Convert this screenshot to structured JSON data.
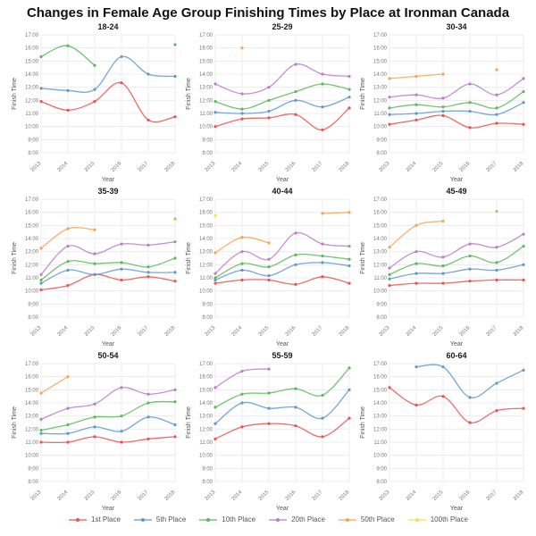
{
  "title": "Changes in Female Age Group Finishing Times by Place at Ironman Canada",
  "legend": {
    "entries": [
      {
        "label": "1st Place",
        "color": "#e8534f"
      },
      {
        "label": "5th Place",
        "color": "#5f99cc"
      },
      {
        "label": "10th Place",
        "color": "#5cb85c"
      },
      {
        "label": "20th Place",
        "color": "#b97dc7"
      },
      {
        "label": "50th Place",
        "color": "#f6a353"
      },
      {
        "label": "100th Place",
        "color": "#f0e05a"
      }
    ]
  },
  "axes": {
    "xlabel": "Year",
    "ylabel": "Finish Time",
    "xticks": [
      "2013",
      "2014",
      "2015",
      "2016",
      "2017",
      "2018"
    ],
    "yticks": [
      "17:00",
      "16:00",
      "15:00",
      "14:00",
      "13:00",
      "12:00",
      "11:00",
      "10:00",
      "9:00",
      "8:00"
    ],
    "ymin_hours": 8,
    "ymax_hours": 17,
    "grid": true
  },
  "chart_data": [
    {
      "type": "line",
      "title": "18-24",
      "x": [
        "2013",
        "2014",
        "2015",
        "2016",
        "2017",
        "2018"
      ],
      "series": [
        {
          "name": "1st Place",
          "values": [
            "11:55",
            "11:15",
            "11:55",
            "13:20",
            "10:30",
            "10:45"
          ]
        },
        {
          "name": "5th Place",
          "values": [
            "12:55",
            "12:45",
            "12:50",
            "15:20",
            "14:00",
            "13:50"
          ]
        },
        {
          "name": "10th Place",
          "values": [
            "15:20",
            "16:10",
            "14:40",
            null,
            null,
            "16:15"
          ]
        }
      ]
    },
    {
      "type": "line",
      "title": "25-29",
      "x": [
        "2013",
        "2014",
        "2015",
        "2016",
        "2017",
        "2018"
      ],
      "series": [
        {
          "name": "1st Place",
          "values": [
            "10:00",
            "10:35",
            "10:40",
            "10:55",
            "9:45",
            "11:25"
          ]
        },
        {
          "name": "5th Place",
          "values": [
            "11:05",
            "11:00",
            "11:10",
            "12:00",
            "11:30",
            "12:15"
          ]
        },
        {
          "name": "10th Place",
          "values": [
            "11:55",
            "11:20",
            "12:00",
            "12:40",
            "13:15",
            "12:50"
          ]
        },
        {
          "name": "20th Place",
          "values": [
            "13:15",
            "12:30",
            "13:00",
            "14:45",
            "14:00",
            "13:50"
          ]
        },
        {
          "name": "50th Place",
          "values": [
            null,
            "16:00",
            null,
            null,
            null,
            null
          ]
        }
      ]
    },
    {
      "type": "line",
      "title": "30-34",
      "x": [
        "2013",
        "2014",
        "2015",
        "2016",
        "2017",
        "2018"
      ],
      "series": [
        {
          "name": "1st Place",
          "values": [
            "10:10",
            "10:30",
            "10:50",
            "9:55",
            "10:15",
            "10:10"
          ]
        },
        {
          "name": "5th Place",
          "values": [
            "10:55",
            "11:00",
            "11:10",
            "11:10",
            "10:55",
            "11:50"
          ]
        },
        {
          "name": "10th Place",
          "values": [
            "11:25",
            "11:40",
            "11:30",
            "11:50",
            "11:25",
            "12:40"
          ]
        },
        {
          "name": "20th Place",
          "values": [
            "12:15",
            "12:25",
            "12:10",
            "13:15",
            "12:25",
            "13:40"
          ]
        },
        {
          "name": "50th Place",
          "values": [
            "13:40",
            "13:50",
            "14:00",
            null,
            "14:20",
            null
          ]
        }
      ]
    },
    {
      "type": "line",
      "title": "35-39",
      "x": [
        "2013",
        "2014",
        "2015",
        "2016",
        "2017",
        "2018"
      ],
      "series": [
        {
          "name": "1st Place",
          "values": [
            "10:05",
            "10:25",
            "11:15",
            "10:50",
            "11:05",
            "10:45"
          ]
        },
        {
          "name": "5th Place",
          "values": [
            "10:35",
            "11:35",
            "11:15",
            "11:40",
            "11:25",
            "11:25"
          ]
        },
        {
          "name": "10th Place",
          "values": [
            "10:50",
            "12:15",
            "12:05",
            "12:10",
            "11:50",
            "12:30"
          ]
        },
        {
          "name": "20th Place",
          "values": [
            "11:15",
            "13:25",
            "12:50",
            "13:35",
            "13:30",
            "13:45"
          ]
        },
        {
          "name": "50th Place",
          "values": [
            "13:15",
            "14:45",
            "14:40",
            null,
            null,
            "15:30"
          ]
        }
      ]
    },
    {
      "type": "line",
      "title": "40-44",
      "x": [
        "2013",
        "2014",
        "2015",
        "2016",
        "2017",
        "2018"
      ],
      "series": [
        {
          "name": "1st Place",
          "values": [
            "10:35",
            "10:50",
            "10:50",
            "10:30",
            "11:05",
            "10:35"
          ]
        },
        {
          "name": "5th Place",
          "values": [
            "10:50",
            "11:35",
            "11:10",
            "12:00",
            "12:10",
            "11:55"
          ]
        },
        {
          "name": "10th Place",
          "values": [
            "11:00",
            "12:05",
            "11:50",
            "12:45",
            "12:40",
            "12:25"
          ]
        },
        {
          "name": "20th Place",
          "values": [
            "11:20",
            "13:00",
            "12:25",
            "14:25",
            "13:35",
            "13:25"
          ]
        },
        {
          "name": "50th Place",
          "values": [
            "12:55",
            "14:05",
            "13:40",
            null,
            "15:55",
            "16:00"
          ]
        },
        {
          "name": "100th Place",
          "values": [
            "15:45",
            null,
            null,
            null,
            null,
            null
          ]
        }
      ]
    },
    {
      "type": "line",
      "title": "45-49",
      "x": [
        "2013",
        "2014",
        "2015",
        "2016",
        "2017",
        "2018"
      ],
      "series": [
        {
          "name": "1st Place",
          "values": [
            "10:25",
            "10:35",
            "10:35",
            "10:45",
            "10:50",
            "10:50"
          ]
        },
        {
          "name": "5th Place",
          "values": [
            "10:55",
            "11:20",
            "11:20",
            "11:40",
            "11:35",
            "12:00"
          ]
        },
        {
          "name": "10th Place",
          "values": [
            "11:15",
            "12:05",
            "11:55",
            "12:40",
            "12:10",
            "13:25"
          ]
        },
        {
          "name": "20th Place",
          "values": [
            "11:45",
            "13:00",
            "12:35",
            "13:35",
            "13:20",
            "14:20"
          ]
        },
        {
          "name": "50th Place",
          "values": [
            "13:20",
            "15:00",
            "15:20",
            null,
            "16:05",
            null
          ]
        }
      ]
    },
    {
      "type": "line",
      "title": "50-54",
      "x": [
        "2013",
        "2014",
        "2015",
        "2016",
        "2017",
        "2018"
      ],
      "series": [
        {
          "name": "1st Place",
          "values": [
            "11:00",
            "11:00",
            "11:25",
            "11:00",
            "11:15",
            "11:25"
          ]
        },
        {
          "name": "5th Place",
          "values": [
            "11:40",
            "11:40",
            "12:10",
            "11:50",
            "12:55",
            "12:20"
          ]
        },
        {
          "name": "10th Place",
          "values": [
            "11:55",
            "12:20",
            "12:55",
            "13:00",
            "14:00",
            "14:05"
          ]
        },
        {
          "name": "20th Place",
          "values": [
            "12:45",
            "13:35",
            "13:55",
            "15:10",
            "14:40",
            "15:00"
          ]
        },
        {
          "name": "50th Place",
          "values": [
            "14:45",
            "16:00",
            null,
            null,
            null,
            null
          ]
        }
      ]
    },
    {
      "type": "line",
      "title": "55-59",
      "x": [
        "2013",
        "2014",
        "2015",
        "2016",
        "2017",
        "2018"
      ],
      "series": [
        {
          "name": "1st Place",
          "values": [
            "11:15",
            "12:10",
            "12:25",
            "12:15",
            "11:25",
            "12:50"
          ]
        },
        {
          "name": "5th Place",
          "values": [
            "12:25",
            "14:00",
            "13:35",
            "13:40",
            "12:50",
            "15:00"
          ]
        },
        {
          "name": "10th Place",
          "values": [
            "13:40",
            "14:40",
            "14:45",
            "15:05",
            "14:35",
            "16:40"
          ]
        },
        {
          "name": "20th Place",
          "values": [
            "15:10",
            "16:25",
            "16:35",
            null,
            null,
            null
          ]
        }
      ]
    },
    {
      "type": "line",
      "title": "60-64",
      "x": [
        "2013",
        "2014",
        "2015",
        "2016",
        "2017",
        "2018"
      ],
      "series": [
        {
          "name": "1st Place",
          "values": [
            "15:10",
            "13:50",
            "14:30",
            "12:30",
            "13:25",
            "13:35"
          ]
        },
        {
          "name": "5th Place",
          "values": [
            null,
            "16:45",
            "16:45",
            "14:25",
            "15:30",
            "16:30"
          ]
        }
      ]
    }
  ]
}
